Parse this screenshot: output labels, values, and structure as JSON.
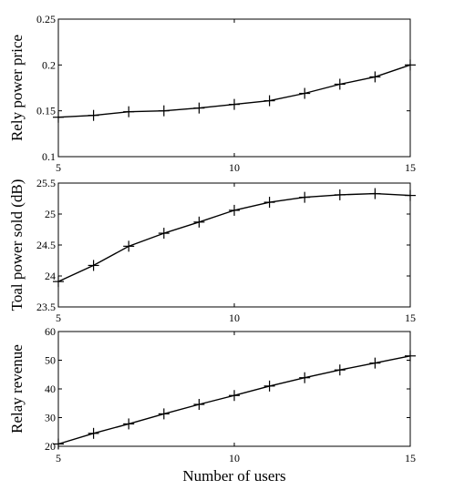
{
  "chart_data": [
    {
      "type": "line",
      "xlabel": "",
      "ylabel": "Rely power price",
      "xlim": [
        5,
        15
      ],
      "ylim": [
        0.1,
        0.25
      ],
      "xticks": [
        5,
        10,
        15
      ],
      "xtick_labels": [
        "5",
        "10",
        "15"
      ],
      "yticks": [
        0.1,
        0.15,
        0.2,
        0.25
      ],
      "ytick_labels": [
        "0.1",
        "0.15",
        "0.2",
        "0.25"
      ],
      "marker": "plus",
      "x": [
        5,
        6,
        7,
        8,
        9,
        10,
        11,
        12,
        13,
        14,
        15
      ],
      "values": [
        0.143,
        0.145,
        0.149,
        0.15,
        0.153,
        0.157,
        0.161,
        0.169,
        0.179,
        0.187,
        0.2
      ]
    },
    {
      "type": "line",
      "xlabel": "",
      "ylabel": "Toal power sold (dB)",
      "xlim": [
        5,
        15
      ],
      "ylim": [
        23.5,
        25.5
      ],
      "xticks": [
        5,
        10,
        15
      ],
      "xtick_labels": [
        "5",
        "10",
        "15"
      ],
      "yticks": [
        23.5,
        24,
        24.5,
        25,
        25.5
      ],
      "ytick_labels": [
        "23.5",
        "24",
        "24.5",
        "25",
        "25.5"
      ],
      "marker": "plus",
      "x": [
        5,
        6,
        7,
        8,
        9,
        10,
        11,
        12,
        13,
        14,
        15
      ],
      "values": [
        23.91,
        24.17,
        24.48,
        24.69,
        24.87,
        25.06,
        25.19,
        25.27,
        25.31,
        25.33,
        25.3
      ]
    },
    {
      "type": "line",
      "xlabel": "Number of users",
      "ylabel": "Relay revenue",
      "xlim": [
        5,
        15
      ],
      "ylim": [
        20,
        60
      ],
      "xticks": [
        5,
        10,
        15
      ],
      "xtick_labels": [
        "5",
        "10",
        "15"
      ],
      "yticks": [
        20,
        30,
        40,
        50,
        60
      ],
      "ytick_labels": [
        "20",
        "30",
        "40",
        "50",
        "60"
      ],
      "marker": "plus",
      "x": [
        5,
        6,
        7,
        8,
        9,
        10,
        11,
        12,
        13,
        14,
        15
      ],
      "values": [
        20.8,
        24.5,
        27.8,
        31.3,
        34.6,
        37.7,
        41.0,
        43.9,
        46.6,
        49.0,
        51.5
      ]
    }
  ]
}
